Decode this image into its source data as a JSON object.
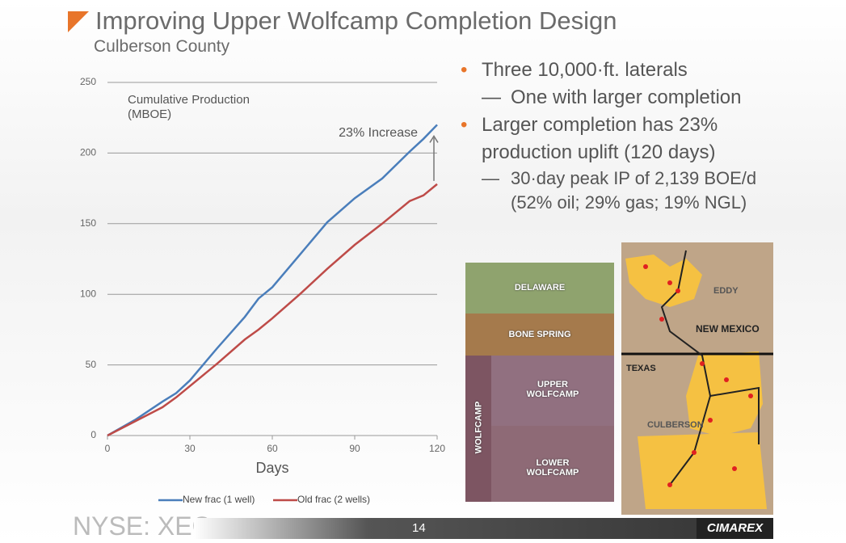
{
  "slide": {
    "title": "Improving Upper Wolfcamp Completion Design",
    "subtitle": "Culberson County",
    "bullets": [
      {
        "text": "Three 10,000·ft. laterals",
        "sub": [
          "One with larger completion"
        ]
      },
      {
        "text": "Larger completion has 23% production uplift (120 days)",
        "sub": [
          "30·day peak IP of 2,139 BOE/d (52% oil; 29% gas; 19% NGL)"
        ]
      }
    ],
    "footer": "NYSE: XEC",
    "page": "14",
    "logo": "CIMAREX",
    "strata": {
      "delaware": "DELAWARE",
      "bone_spring": "BONE SPRING",
      "upper": "UPPER WOLFCAMP",
      "lower": "LOWER WOLFCAMP",
      "group": "WOLFCAMP"
    },
    "map": {
      "eddy": "EDDY",
      "nm": "NEW MEXICO",
      "tx": "TEXAS",
      "culberson": "CULBERSON"
    }
  },
  "chart_data": {
    "type": "line",
    "ylabel": [
      "Cumulative Production",
      "(MBOE)"
    ],
    "xlabel": "Days",
    "annotation": "23% Increase",
    "x": [
      0,
      10,
      20,
      25,
      30,
      40,
      50,
      55,
      60,
      70,
      80,
      90,
      100,
      110,
      115,
      120
    ],
    "series": [
      {
        "name": "New frac (1 well)",
        "color": "#4a7ebb",
        "values": [
          0,
          11,
          24,
          30,
          39,
          62,
          84,
          97,
          105,
          128,
          151,
          168,
          182,
          201,
          210,
          220
        ]
      },
      {
        "name": "Old frac (2 wells)",
        "color": "#be4b48",
        "values": [
          0,
          10,
          20,
          27,
          35,
          51,
          68,
          75,
          83,
          100,
          118,
          135,
          150,
          166,
          170,
          178
        ]
      }
    ],
    "xlim": [
      0,
      120
    ],
    "xticks": [
      0,
      30,
      60,
      90,
      120
    ],
    "ylim": [
      0,
      250
    ],
    "yticks": [
      0,
      50,
      100,
      150,
      200,
      250
    ],
    "grid": true,
    "legend": "bottom"
  }
}
